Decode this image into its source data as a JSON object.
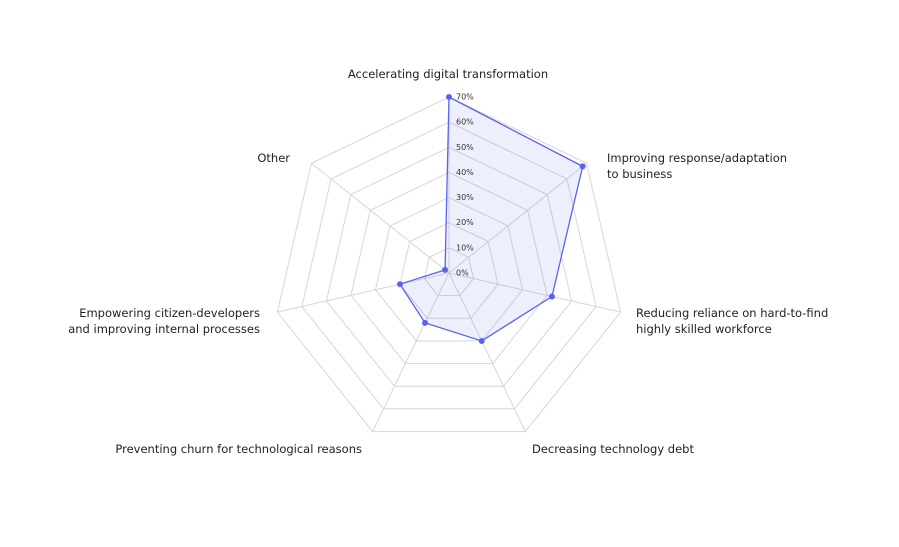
{
  "chart_data": {
    "type": "radar",
    "categories": [
      "Accelerating digital transformation",
      "Improving response/adaptation\nto business",
      "Reducing reliance on hard-to-find\nhighly skilled workforce",
      "Decreasing technology debt",
      "Preventing churn for technological reasons",
      "Empowering citizen-developers\nand improving internal processes",
      "Other"
    ],
    "values": [
      70,
      68,
      42,
      30,
      22,
      20,
      2
    ],
    "color": "#5b63f0",
    "rlim": [
      0,
      70
    ],
    "rticks": [
      {
        "value": 0,
        "label": "0%"
      },
      {
        "value": 10,
        "label": "10%"
      },
      {
        "value": 20,
        "label": "20%"
      },
      {
        "value": 30,
        "label": "30%"
      },
      {
        "value": 40,
        "label": "40%"
      },
      {
        "value": 50,
        "label": "50%"
      },
      {
        "value": 60,
        "label": "60%"
      },
      {
        "value": 70,
        "label": "70%"
      }
    ],
    "grid": true
  }
}
